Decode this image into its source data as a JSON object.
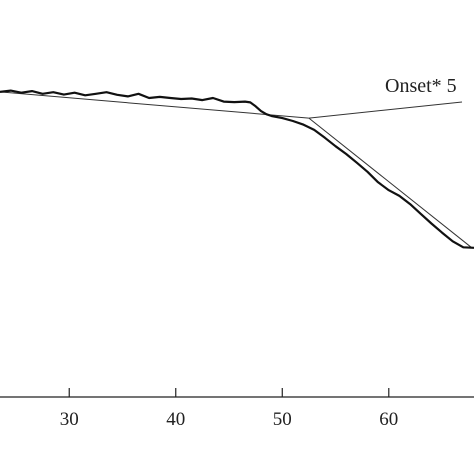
{
  "chart_data": {
    "type": "line",
    "title": "",
    "xlabel": "",
    "ylabel": "",
    "xlim": [
      23.5,
      68
    ],
    "ylim": [
      0,
      1
    ],
    "x_ticks": [
      30,
      40,
      50,
      60
    ],
    "y_ticks": [],
    "grid": false,
    "series": [
      {
        "x": [
          23.5,
          24.5,
          25.5,
          26.5,
          27.5,
          28.5,
          29.5,
          30.5,
          31.5,
          32.5,
          33.5,
          34.5,
          35.5,
          36.5,
          37.5,
          38.5,
          39.5,
          40.5,
          41.5,
          42.5,
          43.5,
          44.5,
          45.5,
          46.5,
          47.0,
          47.5,
          48.0,
          48.5,
          49.0,
          50.0,
          51.0,
          52.0,
          53.0,
          54.0,
          55.0,
          56.0,
          57.0,
          58.0,
          59.0,
          60.0,
          61.0,
          62.0,
          63.0,
          64.0,
          65.0,
          66.0,
          67.0,
          68.0
        ],
        "y": [
          0.985,
          0.99,
          0.982,
          0.988,
          0.978,
          0.984,
          0.975,
          0.982,
          0.972,
          0.978,
          0.984,
          0.974,
          0.968,
          0.978,
          0.962,
          0.966,
          0.962,
          0.958,
          0.96,
          0.954,
          0.962,
          0.948,
          0.946,
          0.948,
          0.945,
          0.93,
          0.912,
          0.9,
          0.893,
          0.885,
          0.874,
          0.86,
          0.84,
          0.81,
          0.778,
          0.748,
          0.715,
          0.68,
          0.64,
          0.61,
          0.588,
          0.557,
          0.52,
          0.483,
          0.448,
          0.415,
          0.392,
          0.39
        ]
      }
    ],
    "tangent_lines": [
      {
        "x": [
          23.5,
          52.5
        ],
        "y": [
          0.985,
          0.885
        ]
      },
      {
        "x": [
          52.5,
          67.8
        ],
        "y": [
          0.885,
          0.39
        ]
      }
    ],
    "annotation": {
      "text": "Onset* 5",
      "points_to": {
        "x": 52.5,
        "y": 0.885
      }
    }
  }
}
